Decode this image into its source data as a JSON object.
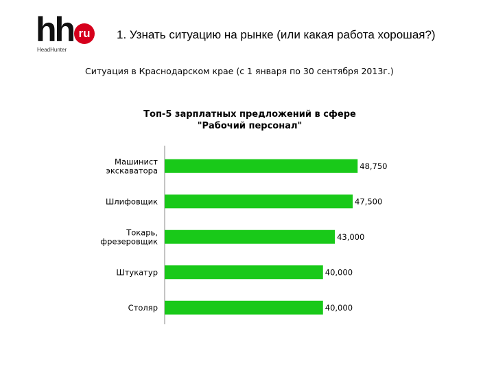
{
  "logo": {
    "main": "hh",
    "badge": "ru",
    "sub": "HeadHunter"
  },
  "header": {
    "title": "1. Узнать ситуацию на рынке (или какая работа хорошая?)",
    "subtitle": "Ситуация в Краснодарском крае (с 1 января по 30 сентября 2013г.)"
  },
  "colors": {
    "bar": "#19c919",
    "axis": "#888888"
  },
  "chart_data": {
    "type": "bar",
    "orientation": "horizontal",
    "title_lines": [
      "Топ-5 зарплатных предложений в сфере",
      "\"Рабочий персонал\""
    ],
    "categories": [
      [
        "Машинист",
        "экскаватора"
      ],
      [
        "Шлифовщик"
      ],
      [
        "Токарь,",
        "фрезеровщик"
      ],
      [
        "Штукатур"
      ],
      [
        "Столяр"
      ]
    ],
    "values": [
      48750,
      47500,
      43000,
      40000,
      40000
    ],
    "value_labels": [
      "48,750",
      "47,500",
      "43,000",
      "40,000",
      "40,000"
    ],
    "xlim": [
      0,
      52000
    ],
    "grid": false,
    "legend": "none"
  }
}
